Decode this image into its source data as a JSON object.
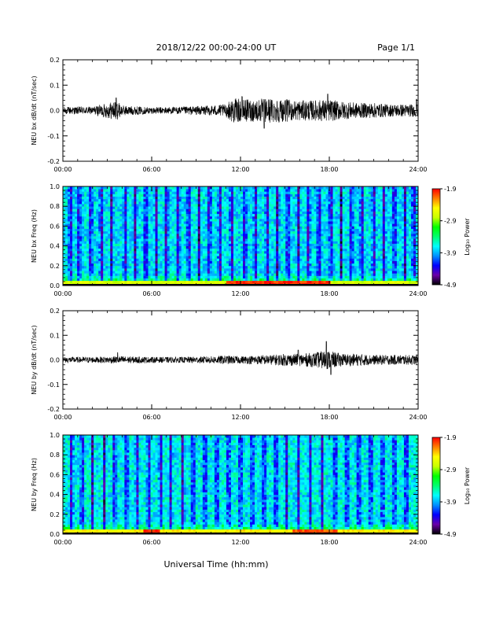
{
  "header": {
    "title": "2018/12/22  00:00-24:00 UT",
    "page": "Page 1/1"
  },
  "footer": {
    "xlabel": "Universal Time (hh:mm)"
  },
  "x_ticks": [
    "00:00",
    "06:00",
    "12:00",
    "18:00",
    "24:00"
  ],
  "colorbar": {
    "label": "Log₁₀ Power",
    "ticks": [
      "-1.9",
      "-2.9",
      "-3.9",
      "-4.9"
    ],
    "range": [
      -4.9,
      -1.9
    ],
    "colors": [
      "#000000",
      "#6a00a8",
      "#0000ff",
      "#0090ff",
      "#00ffff",
      "#00ff70",
      "#00ff00",
      "#c8ff00",
      "#ffff00",
      "#ff8000",
      "#ff0000"
    ]
  },
  "chart_data": [
    {
      "type": "line",
      "panel": "NEU bx dB/dt",
      "ylabel": "NEU bx dB/dt (nT/sec)",
      "ylim": [
        -0.2,
        0.2
      ],
      "yticks": [
        "0.2",
        "0.1",
        "0.0",
        "-0.1",
        "-0.2"
      ],
      "xlim_hours": [
        0,
        24
      ],
      "envelope": {
        "hours": [
          0,
          2,
          3.6,
          4,
          6,
          8,
          10,
          11,
          11.5,
          12,
          13,
          14,
          15,
          16,
          17,
          17.8,
          19,
          20,
          21,
          22,
          23,
          24
        ],
        "amplitude": [
          0.015,
          0.015,
          0.04,
          0.02,
          0.013,
          0.015,
          0.02,
          0.025,
          0.05,
          0.045,
          0.045,
          0.05,
          0.045,
          0.04,
          0.04,
          0.045,
          0.035,
          0.03,
          0.03,
          0.025,
          0.025,
          0.025
        ]
      },
      "spikes": [
        {
          "hour": 3.6,
          "value": 0.05
        },
        {
          "hour": 12.1,
          "value": 0.055
        },
        {
          "hour": 13.6,
          "value": -0.07
        },
        {
          "hour": 17.9,
          "value": 0.065
        },
        {
          "hour": 23.9,
          "value": 0.045
        }
      ],
      "color": "#000000"
    },
    {
      "type": "heatmap",
      "panel": "NEU bx Freq",
      "ylabel": "NEU bx Freq (Hz)",
      "ylim": [
        0.0,
        1.0
      ],
      "yticks": [
        "1.0",
        "0.8",
        "0.6",
        "0.4",
        "0.2",
        "0.0"
      ],
      "xlim_hours": [
        0,
        24
      ],
      "zlim": [
        -4.9,
        -1.9
      ],
      "base_log10_power": -3.75,
      "low_freq_band": {
        "max_freq_hz": 0.05,
        "log10_power": -2.7
      },
      "hot_low_freq": [
        {
          "from_hour": 11,
          "to_hour": 18,
          "log10_power": -2.0
        }
      ],
      "quiet_columns_hours": [
        0.5,
        1.1,
        1.9,
        2.6,
        3.3,
        4.2,
        4.9,
        5.6,
        6.3,
        7.0,
        7.8,
        8.5,
        9.2,
        9.9,
        10.6,
        11.4,
        12.3,
        13.0,
        13.8,
        14.5,
        15.2,
        15.9,
        16.6,
        17.3,
        18.1,
        18.8,
        19.5,
        20.2,
        21.0,
        21.7,
        22.4,
        23.1,
        23.7
      ]
    },
    {
      "type": "line",
      "panel": "NEU by dB/dt",
      "ylabel": "NEU by dB/dt (nT/sec)",
      "ylim": [
        -0.2,
        0.2
      ],
      "yticks": [
        "0.2",
        "0.1",
        "0.0",
        "-0.1",
        "-0.2"
      ],
      "xlim_hours": [
        0,
        24
      ],
      "envelope": {
        "hours": [
          0,
          2,
          4,
          6,
          8,
          10,
          11,
          12,
          13,
          14,
          15,
          16,
          17,
          17.8,
          18.5,
          19,
          20,
          21,
          22,
          23,
          24
        ],
        "amplitude": [
          0.012,
          0.012,
          0.015,
          0.012,
          0.012,
          0.015,
          0.018,
          0.015,
          0.018,
          0.02,
          0.025,
          0.025,
          0.03,
          0.04,
          0.03,
          0.025,
          0.025,
          0.02,
          0.02,
          0.02,
          0.02
        ]
      },
      "spikes": [
        {
          "hour": 3.7,
          "value": 0.03
        },
        {
          "hour": 17.8,
          "value": 0.075
        },
        {
          "hour": 18.1,
          "value": -0.06
        },
        {
          "hour": 15.9,
          "value": 0.04
        }
      ],
      "color": "#000000"
    },
    {
      "type": "heatmap",
      "panel": "NEU by Freq",
      "ylabel": "NEU by Freq (Hz)",
      "ylim": [
        0.0,
        1.0
      ],
      "yticks": [
        "1.0",
        "0.8",
        "0.6",
        "0.4",
        "0.2",
        "0.0"
      ],
      "xlim_hours": [
        0,
        24
      ],
      "zlim": [
        -4.9,
        -1.9
      ],
      "base_log10_power": -3.7,
      "low_freq_band": {
        "max_freq_hz": 0.05,
        "log10_power": -2.5
      },
      "hot_low_freq": [
        {
          "from_hour": 5.5,
          "to_hour": 6.5,
          "log10_power": -2.0
        },
        {
          "from_hour": 15.5,
          "to_hour": 18.5,
          "log10_power": -2.1
        }
      ],
      "quiet_columns_hours": [
        0.6,
        1.3,
        2.0,
        2.8,
        3.5,
        4.3,
        5.0,
        5.8,
        6.6,
        7.3,
        8.1,
        8.8,
        9.6,
        10.4,
        11.2,
        12.0,
        12.8,
        13.6,
        14.4,
        15.1,
        15.9,
        16.7,
        17.5,
        18.4,
        19.2,
        20.0,
        20.8,
        21.6,
        22.4,
        23.2
      ]
    }
  ]
}
